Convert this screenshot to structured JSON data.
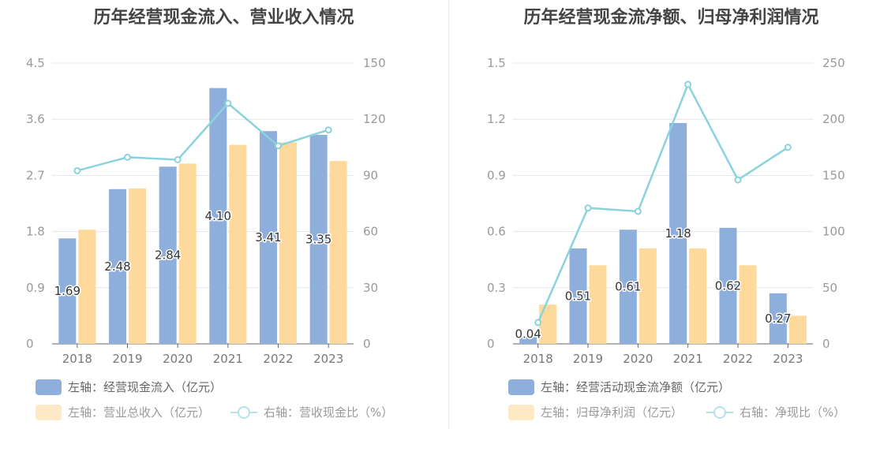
{
  "charts": {
    "left": {
      "title": "历年经营现金流入、营业收入情况",
      "legend": {
        "bar1": "左轴：经营现金流入（亿元）",
        "bar2": "左轴：营业总收入（亿元）",
        "line": "右轴：营收现金比（%）"
      }
    },
    "right": {
      "title": "历年经营现金流净额、归母净利润情况",
      "legend": {
        "bar1": "左轴：经营活动现金流净额（亿元）",
        "bar2": "左轴：归母净利润（亿元）",
        "line": "右轴：净现比（%）"
      }
    }
  },
  "chart_data": [
    {
      "type": "bar",
      "title": "历年经营现金流入、营业收入情况",
      "categories": [
        "2018",
        "2019",
        "2020",
        "2021",
        "2022",
        "2023"
      ],
      "y_left": {
        "ticks": [
          "0",
          "0.9",
          "1.8",
          "2.7",
          "3.6",
          "4.5"
        ],
        "range": [
          0,
          4.5
        ]
      },
      "y_right": {
        "ticks": [
          "0",
          "30",
          "60",
          "90",
          "120",
          "150"
        ],
        "range": [
          0,
          150
        ]
      },
      "series": [
        {
          "name": "左轴：经营现金流入（亿元）",
          "axis": "left",
          "type": "bar",
          "color": "#8eaedb",
          "values": [
            1.69,
            2.48,
            2.84,
            4.1,
            3.41,
            3.35
          ],
          "labels": [
            "1.69",
            "2.48",
            "2.84",
            "4.10",
            "3.41",
            "3.35"
          ]
        },
        {
          "name": "左轴：营业总收入（亿元）",
          "axis": "left",
          "type": "bar",
          "color": "#fdd99b",
          "values": [
            1.83,
            2.49,
            2.89,
            3.19,
            3.23,
            2.93
          ]
        },
        {
          "name": "右轴：营收现金比（%）",
          "axis": "right",
          "type": "line",
          "color": "#8ad3dc",
          "values": [
            92.5,
            99.7,
            98.4,
            128.5,
            105.8,
            114.3
          ]
        }
      ],
      "grid": true,
      "legend_position": "bottom-left"
    },
    {
      "type": "bar",
      "title": "历年经营现金流净额、归母净利润情况",
      "categories": [
        "2018",
        "2019",
        "2020",
        "2021",
        "2022",
        "2023"
      ],
      "y_left": {
        "ticks": [
          "0",
          "0.3",
          "0.6",
          "0.9",
          "1.2",
          "1.5"
        ],
        "range": [
          0,
          1.5
        ]
      },
      "y_right": {
        "ticks": [
          "0",
          "50",
          "100",
          "150",
          "200",
          "250"
        ],
        "range": [
          0,
          250
        ]
      },
      "series": [
        {
          "name": "左轴：经营活动现金流净额（亿元）",
          "axis": "left",
          "type": "bar",
          "color": "#8eaedb",
          "values": [
            0.04,
            0.51,
            0.61,
            1.18,
            0.62,
            0.27
          ],
          "labels": [
            "0.04",
            "0.51",
            "0.61",
            "1.18",
            "0.62",
            "0.27"
          ]
        },
        {
          "name": "左轴：归母净利润（亿元）",
          "axis": "left",
          "type": "bar",
          "color": "#fdd99b",
          "values": [
            0.21,
            0.42,
            0.51,
            0.51,
            0.42,
            0.15
          ]
        },
        {
          "name": "右轴：净现比（%）",
          "axis": "right",
          "type": "line",
          "color": "#8ad3dc",
          "values": [
            19,
            121,
            118,
            231,
            146,
            175
          ]
        }
      ],
      "grid": true,
      "legend_position": "bottom-left"
    }
  ]
}
